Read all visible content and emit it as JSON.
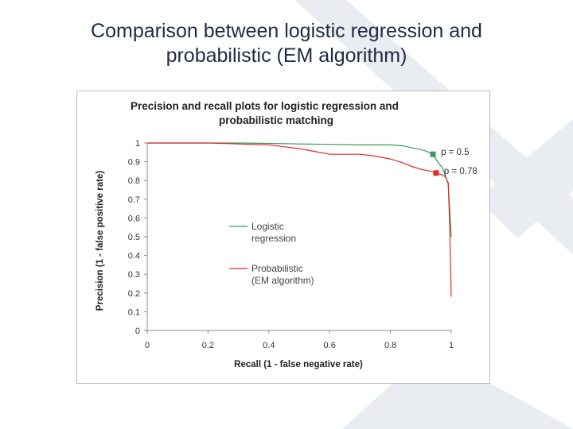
{
  "slide": {
    "title_line1": "Comparison between logistic regression and",
    "title_line2": "probabilistic (EM algorithm)"
  },
  "colors": {
    "title": "#1f2a44",
    "logistic": "#3a9a5b",
    "probabilistic": "#e32a2a",
    "background_decoration": "#e9ecf0"
  },
  "chart_data": {
    "type": "line",
    "title_line1": "Precision and recall plots for logistic regression and",
    "title_line2": "probabilistic matching",
    "xlabel": "Recall (1 - false negative  rate)",
    "ylabel": "Precision (1 - false positive rate)",
    "xlim": [
      0,
      1
    ],
    "ylim": [
      0,
      1
    ],
    "x_ticks": [
      "0",
      "0.2",
      "0.4",
      "0.6",
      "0.8",
      "1"
    ],
    "y_ticks": [
      "0",
      "0.1",
      "0.2",
      "0.3",
      "0.4",
      "0.5",
      "0.6",
      "0.7",
      "0.8",
      "0.9",
      "1"
    ],
    "grid": false,
    "legend_position": "center-left",
    "series": [
      {
        "name": "Logistic regression",
        "legend_line1": "Logistic",
        "legend_line2": "regression",
        "color": "#3a9a5b",
        "x": [
          0.0,
          0.1,
          0.2,
          0.3,
          0.4,
          0.5,
          0.6,
          0.7,
          0.75,
          0.8,
          0.84,
          0.87,
          0.9,
          0.92,
          0.94,
          0.955,
          0.97,
          0.98,
          0.99,
          0.995,
          1.0
        ],
        "y": [
          1.0,
          1.0,
          1.0,
          1.0,
          0.998,
          0.995,
          0.993,
          0.99,
          0.99,
          0.99,
          0.985,
          0.975,
          0.965,
          0.955,
          0.94,
          0.9,
          0.87,
          0.83,
          0.78,
          0.65,
          0.5
        ]
      },
      {
        "name": "Probabilistic (EM algorithm)",
        "legend_line1": "Probabilistic",
        "legend_line2": "(EM algorithm)",
        "color": "#e32a2a",
        "x": [
          0.0,
          0.1,
          0.2,
          0.3,
          0.4,
          0.45,
          0.5,
          0.55,
          0.6,
          0.65,
          0.7,
          0.75,
          0.8,
          0.84,
          0.87,
          0.9,
          0.93,
          0.95,
          0.97,
          0.98,
          0.99,
          0.995,
          1.0
        ],
        "y": [
          1.0,
          1.0,
          1.0,
          0.995,
          0.99,
          0.98,
          0.97,
          0.955,
          0.94,
          0.94,
          0.94,
          0.93,
          0.915,
          0.895,
          0.875,
          0.86,
          0.85,
          0.84,
          0.83,
          0.82,
          0.79,
          0.55,
          0.18
        ]
      }
    ],
    "annotations": [
      {
        "series": 0,
        "x": 0.94,
        "y": 0.94,
        "label": "p = 0.5",
        "marker": "square"
      },
      {
        "series": 1,
        "x": 0.95,
        "y": 0.84,
        "label": "p = 0.78",
        "marker": "square"
      }
    ]
  }
}
